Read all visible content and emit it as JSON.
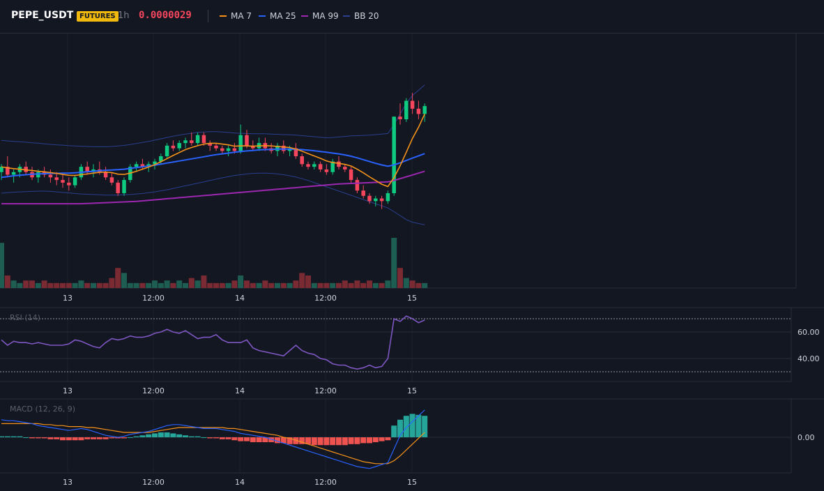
{
  "header": {
    "symbol": "PEPE_USDT",
    "badge": "FUTURES",
    "interval": "1h",
    "price": "0.0000029",
    "legend": [
      {
        "label": "MA 7",
        "color": "#f7931a"
      },
      {
        "label": "MA 25",
        "color": "#2962ff"
      },
      {
        "label": "MA 99",
        "color": "#9c27b0"
      },
      {
        "label": "BB 20",
        "color": "#2a3f8f"
      }
    ]
  },
  "colors": {
    "up": "#0ecb81",
    "down": "#f6465d",
    "ma7": "#f7931a",
    "ma25": "#2962ff",
    "ma99": "#9c27b0",
    "bb": "#2a3f8f",
    "rsi": "#7e57c2",
    "macd": "#2962ff",
    "signal": "#f7931a",
    "hist_up": "#26a69a",
    "hist_down": "#ef5350"
  },
  "x_labels": [
    "13",
    "12:00",
    "14",
    "12:00",
    "15"
  ],
  "rsi": {
    "title": "RSI (14)",
    "ticks": [
      "60.00",
      "40.00"
    ]
  },
  "macd": {
    "title": "MACD (12, 26, 9)",
    "ticks": [
      "0.00"
    ]
  },
  "chart_data": {
    "type": "candlestick",
    "candles": [
      [
        52,
        55,
        49,
        54
      ],
      [
        54,
        58,
        50,
        51
      ],
      [
        51,
        53,
        48,
        52
      ],
      [
        52,
        55,
        50,
        54
      ],
      [
        54,
        56,
        51,
        52
      ],
      [
        52,
        54,
        49,
        50
      ],
      [
        50,
        53,
        48,
        52
      ],
      [
        52,
        54,
        50,
        51
      ],
      [
        51,
        53,
        48,
        50
      ],
      [
        50,
        52,
        47,
        49
      ],
      [
        49,
        51,
        46,
        48
      ],
      [
        48,
        50,
        45,
        47
      ],
      [
        47,
        51,
        46,
        50
      ],
      [
        50,
        55,
        49,
        54
      ],
      [
        54,
        56,
        51,
        52
      ],
      [
        52,
        55,
        50,
        53
      ],
      [
        53,
        56,
        51,
        52
      ],
      [
        52,
        54,
        49,
        50
      ],
      [
        50,
        52,
        47,
        48
      ],
      [
        48,
        49,
        43,
        44
      ],
      [
        44,
        50,
        43,
        49
      ],
      [
        49,
        55,
        48,
        54
      ],
      [
        54,
        56,
        52,
        55
      ],
      [
        55,
        57,
        53,
        54
      ],
      [
        54,
        56,
        52,
        55
      ],
      [
        55,
        57,
        53,
        56
      ],
      [
        56,
        59,
        55,
        58
      ],
      [
        58,
        63,
        57,
        62
      ],
      [
        62,
        64,
        60,
        61
      ],
      [
        61,
        64,
        60,
        63
      ],
      [
        63,
        65,
        61,
        64
      ],
      [
        64,
        67,
        62,
        63
      ],
      [
        63,
        67,
        62,
        66
      ],
      [
        66,
        67,
        62,
        63
      ],
      [
        63,
        64,
        60,
        62
      ],
      [
        62,
        63,
        60,
        61
      ],
      [
        61,
        62,
        59,
        60
      ],
      [
        60,
        62,
        58,
        61
      ],
      [
        61,
        63,
        59,
        60
      ],
      [
        60,
        70,
        59,
        66
      ],
      [
        66,
        68,
        61,
        62
      ],
      [
        62,
        64,
        60,
        61
      ],
      [
        61,
        65,
        60,
        63
      ],
      [
        63,
        65,
        60,
        61
      ],
      [
        61,
        63,
        59,
        60
      ],
      [
        60,
        63,
        58,
        62
      ],
      [
        62,
        64,
        59,
        60
      ],
      [
        60,
        62,
        58,
        61
      ],
      [
        61,
        63,
        57,
        58
      ],
      [
        58,
        59,
        54,
        55
      ],
      [
        55,
        56,
        53,
        54
      ],
      [
        54,
        56,
        53,
        55
      ],
      [
        55,
        56,
        52,
        53
      ],
      [
        53,
        55,
        51,
        52
      ],
      [
        52,
        57,
        51,
        56
      ],
      [
        56,
        58,
        53,
        54
      ],
      [
        54,
        55,
        52,
        53
      ],
      [
        53,
        54,
        48,
        49
      ],
      [
        49,
        50,
        44,
        45
      ],
      [
        45,
        47,
        42,
        43
      ],
      [
        43,
        44,
        40,
        41
      ],
      [
        41,
        43,
        39,
        42
      ],
      [
        42,
        43,
        38,
        41
      ],
      [
        41,
        45,
        40,
        44
      ],
      [
        44,
        73,
        43,
        73
      ],
      [
        73,
        78,
        70,
        72
      ],
      [
        72,
        80,
        71,
        79
      ],
      [
        79,
        82,
        74,
        76
      ],
      [
        76,
        79,
        72,
        74
      ],
      [
        74,
        78,
        71,
        77
      ]
    ],
    "volume": [
      18,
      5,
      3,
      2,
      3,
      3,
      2,
      3,
      2,
      2,
      2,
      2,
      2,
      3,
      2,
      2,
      2,
      2,
      4,
      8,
      6,
      2,
      2,
      2,
      2,
      3,
      2,
      3,
      2,
      3,
      2,
      4,
      3,
      5,
      2,
      2,
      2,
      2,
      3,
      5,
      3,
      2,
      2,
      3,
      2,
      2,
      2,
      2,
      3,
      6,
      5,
      2,
      2,
      2,
      2,
      2,
      3,
      2,
      3,
      2,
      3,
      2,
      2,
      3,
      20,
      8,
      4,
      3,
      2,
      2
    ],
    "ma7": [
      54,
      53.6,
      53.3,
      53.1,
      52.8,
      52.6,
      52.3,
      52.1,
      51.8,
      51.5,
      51.1,
      50.8,
      50.7,
      51.0,
      51.3,
      51.6,
      51.9,
      52.0,
      51.8,
      51.2,
      51.1,
      51.6,
      52.3,
      53.1,
      53.9,
      54.8,
      55.9,
      57.1,
      58.3,
      59.4,
      60.5,
      61.3,
      62.0,
      62.6,
      62.9,
      62.9,
      62.6,
      62.3,
      61.8,
      61.9,
      61.9,
      61.8,
      61.9,
      62.0,
      61.9,
      61.7,
      61.5,
      61.3,
      60.7,
      59.9,
      59.0,
      58.1,
      57.2,
      56.2,
      55.6,
      55.3,
      54.9,
      54.3,
      53.1,
      51.7,
      50.2,
      48.8,
      47.4,
      46.5,
      49.9,
      54.4,
      59.5,
      64.7,
      69.0,
      74.0
    ],
    "ma25": [
      50,
      50.3,
      50.6,
      50.8,
      51.0,
      51.2,
      51.3,
      51.4,
      51.5,
      51.5,
      51.6,
      51.6,
      51.7,
      51.9,
      52.1,
      52.3,
      52.5,
      52.7,
      52.8,
      52.9,
      53.1,
      53.4,
      53.7,
      54.0,
      54.3,
      54.6,
      55.0,
      55.4,
      55.8,
      56.2,
      56.6,
      57.0,
      57.4,
      57.8,
      58.2,
      58.6,
      58.9,
      59.2,
      59.5,
      59.8,
      60.0,
      60.2,
      60.4,
      60.5,
      60.6,
      60.7,
      60.7,
      60.7,
      60.6,
      60.5,
      60.3,
      60.1,
      59.8,
      59.5,
      59.2,
      58.9,
      58.5,
      58.0,
      57.4,
      56.7,
      56.0,
      55.3,
      54.7,
      54.2,
      54.7,
      55.5,
      56.4,
      57.3,
      58.1,
      59.0
    ],
    "ma99": [
      40,
      40.0,
      40.0,
      40.0,
      40.0,
      40.0,
      40.0,
      40.0,
      40.0,
      40.0,
      40.0,
      40.0,
      40.0,
      40.0,
      40.1,
      40.2,
      40.3,
      40.4,
      40.5,
      40.6,
      40.7,
      40.8,
      40.9,
      41.1,
      41.3,
      41.5,
      41.7,
      41.9,
      42.1,
      42.3,
      42.5,
      42.7,
      42.9,
      43.1,
      43.3,
      43.5,
      43.7,
      43.9,
      44.1,
      44.3,
      44.5,
      44.7,
      44.9,
      45.1,
      45.3,
      45.5,
      45.7,
      45.9,
      46.1,
      46.3,
      46.5,
      46.7,
      46.9,
      47.1,
      47.3,
      47.5,
      47.6,
      47.7,
      47.8,
      47.9,
      48.0,
      48.1,
      48.2,
      48.3,
      48.8,
      49.5,
      50.2,
      50.9,
      51.6,
      52.3
    ],
    "bb_upper": [
      64,
      63.8,
      63.6,
      63.5,
      63.3,
      63.1,
      62.9,
      62.7,
      62.5,
      62.3,
      62.2,
      62.0,
      61.9,
      61.8,
      61.7,
      61.6,
      61.6,
      61.6,
      61.7,
      61.9,
      62.1,
      62.4,
      62.8,
      63.2,
      63.6,
      64.1,
      64.6,
      65.1,
      65.6,
      66.0,
      66.4,
      66.7,
      67.0,
      67.2,
      67.3,
      67.3,
      67.2,
      67.0,
      66.8,
      66.7,
      66.6,
      66.5,
      66.5,
      66.5,
      66.4,
      66.3,
      66.2,
      66.1,
      66.0,
      65.8,
      65.6,
      65.4,
      65.2,
      65.0,
      65.1,
      65.3,
      65.5,
      65.7,
      65.8,
      65.9,
      66.0,
      66.2,
      66.4,
      66.6,
      70.0,
      74.0,
      78.0,
      81.0,
      83.0,
      85.0
    ],
    "bb_lower": [
      44,
      44.2,
      44.4,
      44.5,
      44.6,
      44.7,
      44.8,
      44.8,
      44.7,
      44.5,
      44.3,
      44.1,
      43.9,
      43.7,
      43.6,
      43.5,
      43.4,
      43.3,
      43.3,
      43.3,
      43.4,
      43.5,
      43.7,
      43.9,
      44.2,
      44.5,
      44.9,
      45.3,
      45.8,
      46.3,
      46.8,
      47.3,
      47.8,
      48.3,
      48.8,
      49.3,
      49.8,
      50.3,
      50.7,
      51.0,
      51.3,
      51.5,
      51.6,
      51.6,
      51.5,
      51.3,
      51.0,
      50.6,
      50.1,
      49.5,
      48.8,
      48.0,
      47.2,
      46.4,
      45.6,
      44.8,
      44.0,
      43.2,
      42.4,
      41.6,
      40.8,
      40.0,
      39.2,
      38.4,
      37.0,
      35.5,
      34.0,
      33.0,
      32.5,
      32.0
    ],
    "rsi": [
      54,
      50,
      53,
      52,
      52,
      51,
      52,
      51,
      50,
      50,
      50,
      51,
      54,
      53,
      51,
      49,
      48,
      52,
      55,
      54,
      55,
      57,
      56,
      56,
      57,
      59,
      60,
      62,
      60,
      59,
      61,
      58,
      55,
      56,
      56,
      58,
      54,
      52,
      52,
      52,
      54,
      48,
      46,
      45,
      44,
      43,
      42,
      46,
      50,
      46,
      44,
      43,
      40,
      39,
      36,
      35,
      35,
      33,
      32,
      33,
      35,
      33,
      34,
      40,
      70,
      68,
      72,
      70,
      67,
      69
    ],
    "macd": [
      18,
      17,
      17,
      16,
      15,
      14,
      12,
      11,
      10,
      9,
      8,
      7,
      8,
      9,
      8,
      6,
      4,
      2,
      1,
      0,
      1,
      3,
      4,
      5,
      6,
      8,
      10,
      12,
      13,
      13,
      12,
      11,
      10,
      9,
      9,
      9,
      8,
      7,
      6,
      4,
      3,
      2,
      1,
      0,
      -2,
      -4,
      -6,
      -8,
      -10,
      -12,
      -14,
      -16,
      -18,
      -20,
      -22,
      -24,
      -26,
      -28,
      -30,
      -31,
      -32,
      -30,
      -28,
      -26,
      -12,
      2,
      10,
      16,
      22,
      28
    ],
    "signal": [
      14,
      14,
      14,
      14,
      14,
      14,
      14,
      13,
      13,
      12,
      12,
      11,
      11,
      11,
      10,
      10,
      9,
      8,
      7,
      6,
      5,
      5,
      5,
      5,
      5,
      6,
      7,
      8,
      9,
      10,
      10,
      10,
      10,
      10,
      10,
      10,
      10,
      9,
      9,
      8,
      7,
      6,
      5,
      4,
      3,
      2,
      0,
      -1,
      -3,
      -5,
      -7,
      -9,
      -11,
      -13,
      -15,
      -17,
      -19,
      -21,
      -23,
      -25,
      -26,
      -27,
      -27,
      -27,
      -24,
      -19,
      -13,
      -7,
      -1,
      5
    ],
    "hist": [
      1,
      1,
      1,
      1,
      0,
      -1,
      -1,
      -1,
      -2,
      -2,
      -3,
      -3,
      -3,
      -3,
      -2,
      -2,
      -2,
      -2,
      -1,
      -1,
      -1,
      0,
      1,
      2,
      3,
      4,
      5,
      5,
      4,
      3,
      2,
      1,
      1,
      0,
      -1,
      -1,
      -2,
      -2,
      -3,
      -4,
      -4,
      -5,
      -5,
      -5,
      -5,
      -6,
      -6,
      -7,
      -7,
      -7,
      -7,
      -8,
      -8,
      -8,
      -8,
      -8,
      -8,
      -7,
      -7,
      -6,
      -6,
      -5,
      -4,
      -3,
      12,
      18,
      22,
      24,
      23,
      22
    ]
  }
}
